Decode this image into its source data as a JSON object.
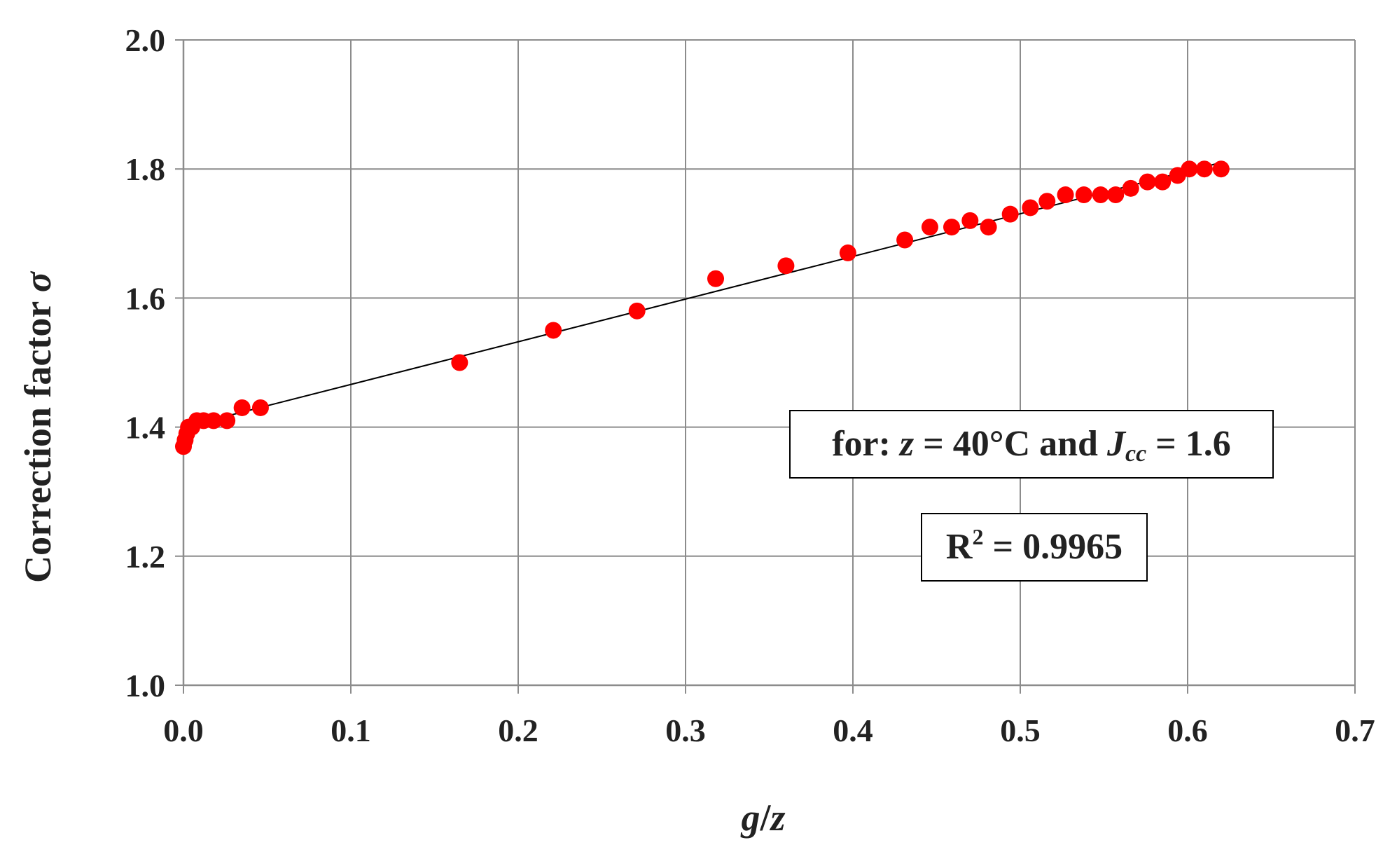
{
  "chart_data": {
    "type": "scatter",
    "xlabel": {
      "var1": "g",
      "sep": "/",
      "var2": "z"
    },
    "ylabel": {
      "text": "Correction factor ",
      "symbol": "σ"
    },
    "xlim": [
      0,
      0.7
    ],
    "ylim": [
      1.0,
      2.0
    ],
    "x_ticks": [
      0.0,
      0.1,
      0.2,
      0.3,
      0.4,
      0.5,
      0.6,
      0.7
    ],
    "y_ticks": [
      1.0,
      1.2,
      1.4,
      1.6,
      1.8,
      2.0
    ],
    "x_tick_labels": [
      "0.0",
      "0.1",
      "0.2",
      "0.3",
      "0.4",
      "0.5",
      "0.6",
      "0.7"
    ],
    "y_tick_labels": [
      "1.0",
      "1.2",
      "1.4",
      "1.6",
      "1.8",
      "2.0"
    ],
    "grid": true,
    "marker_color": "#ff0000",
    "trendline_color": "#000000",
    "points": [
      {
        "x": 0.0,
        "y": 1.37
      },
      {
        "x": 0.001,
        "y": 1.38
      },
      {
        "x": 0.002,
        "y": 1.39
      },
      {
        "x": 0.003,
        "y": 1.4
      },
      {
        "x": 0.005,
        "y": 1.4
      },
      {
        "x": 0.008,
        "y": 1.41
      },
      {
        "x": 0.012,
        "y": 1.41
      },
      {
        "x": 0.018,
        "y": 1.41
      },
      {
        "x": 0.026,
        "y": 1.41
      },
      {
        "x": 0.035,
        "y": 1.43
      },
      {
        "x": 0.046,
        "y": 1.43
      },
      {
        "x": 0.165,
        "y": 1.5
      },
      {
        "x": 0.221,
        "y": 1.55
      },
      {
        "x": 0.271,
        "y": 1.58
      },
      {
        "x": 0.318,
        "y": 1.63
      },
      {
        "x": 0.36,
        "y": 1.65
      },
      {
        "x": 0.397,
        "y": 1.67
      },
      {
        "x": 0.431,
        "y": 1.69
      },
      {
        "x": 0.446,
        "y": 1.71
      },
      {
        "x": 0.459,
        "y": 1.71
      },
      {
        "x": 0.47,
        "y": 1.72
      },
      {
        "x": 0.481,
        "y": 1.71
      },
      {
        "x": 0.494,
        "y": 1.73
      },
      {
        "x": 0.506,
        "y": 1.74
      },
      {
        "x": 0.516,
        "y": 1.75
      },
      {
        "x": 0.527,
        "y": 1.76
      },
      {
        "x": 0.538,
        "y": 1.76
      },
      {
        "x": 0.548,
        "y": 1.76
      },
      {
        "x": 0.557,
        "y": 1.76
      },
      {
        "x": 0.566,
        "y": 1.77
      },
      {
        "x": 0.576,
        "y": 1.78
      },
      {
        "x": 0.585,
        "y": 1.78
      },
      {
        "x": 0.594,
        "y": 1.79
      },
      {
        "x": 0.601,
        "y": 1.8
      },
      {
        "x": 0.61,
        "y": 1.8
      },
      {
        "x": 0.62,
        "y": 1.8
      }
    ],
    "trendline": {
      "x": [
        0.0,
        0.62
      ],
      "y": [
        1.4,
        1.81
      ]
    },
    "annotations": {
      "condition": {
        "prefix": "for: ",
        "var": "z",
        "mid": " = 40°C and ",
        "var2": "J",
        "sub": "cc",
        "suffix": " = 1.6"
      },
      "r_squared": {
        "prefix": "R",
        "sup": "2",
        "suffix": " = 0.9965"
      }
    }
  }
}
